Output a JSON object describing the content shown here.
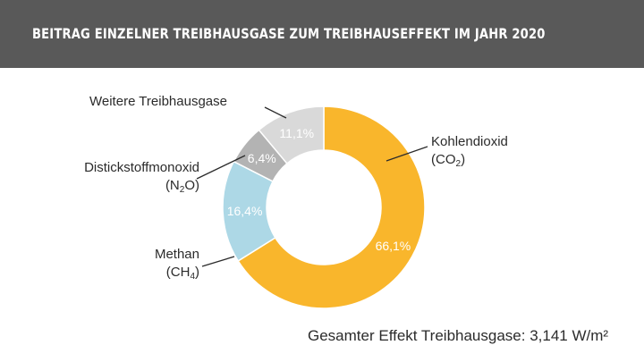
{
  "header": {
    "title": "BEITRAG EINZELNER TREIBHAUSGASE ZUM TREIBHAUSEFFEKT IM JAHR 2020"
  },
  "chart_data": {
    "type": "pie",
    "variant": "donut",
    "title": "BEITRAG EINZELNER TREIBHAUSGASE ZUM TREIBHAUSEFFEKT IM JAHR 2020",
    "slices": [
      {
        "label": "Kohlendioxid",
        "formula": "CO2",
        "value": 66.1,
        "value_label": "66,1%",
        "color": "#F9B62C"
      },
      {
        "label": "Methan",
        "formula": "CH4",
        "value": 16.4,
        "value_label": "16,4%",
        "color": "#ADD8E6"
      },
      {
        "label": "Distickstoffmonoxid",
        "formula": "N2O",
        "value": 6.4,
        "value_label": "6,4%",
        "color": "#B3B3B3"
      },
      {
        "label": "Weitere Treibhausgase",
        "formula": "",
        "value": 11.1,
        "value_label": "11,1%",
        "color": "#D9D9D9"
      }
    ]
  },
  "labels": {
    "co2_name": "Kohlendioxid",
    "co2_formula_a": "(CO",
    "co2_formula_sub": "2",
    "co2_formula_b": ")",
    "ch4_name": "Methan",
    "ch4_formula_a": "(CH",
    "ch4_formula_sub": "4",
    "ch4_formula_b": ")",
    "n2o_name": "Distickstoffmonoxid",
    "n2o_formula_a": "(N",
    "n2o_formula_sub": "2",
    "n2o_formula_b": "O)",
    "other_name": "Weitere Treibhausgase"
  },
  "footer": {
    "total": "Gesamter Effekt Treibhausgase: 3,141 W/m²"
  }
}
